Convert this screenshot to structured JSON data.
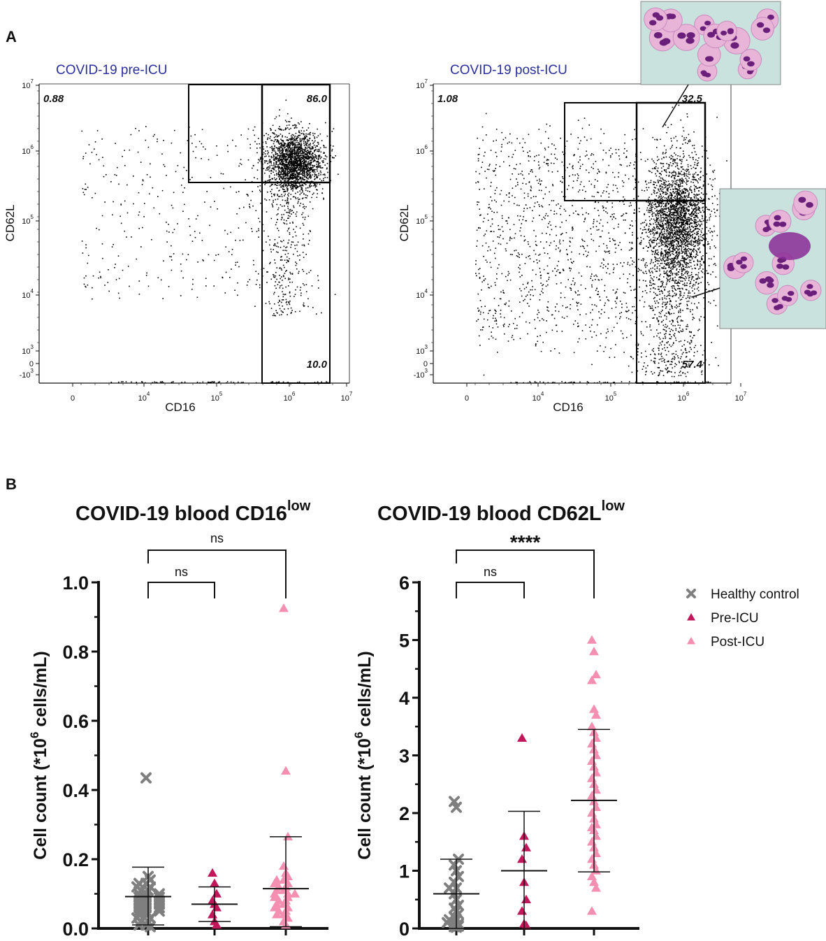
{
  "colors": {
    "healthy": "#7f7f7f",
    "pre_icu": "#c2185b",
    "post_icu": "#f48fb1",
    "title_blue": "#2b2f9c",
    "cell_bg": "#c9e2dd",
    "cell_pink": "#e8b4d8",
    "nucleus": "#6a1f7a"
  },
  "panel_a": {
    "letter": "A",
    "xlabel": "CD16",
    "ylabel": "CD62L",
    "x_ticks": [
      "0",
      "10",
      "10",
      "10",
      "10"
    ],
    "x_tick_exps": [
      "",
      "4",
      "5",
      "6",
      "7"
    ],
    "y_ticks": [
      "10",
      "10",
      "10",
      "10",
      "10",
      "0",
      "-10"
    ],
    "y_tick_exps": [
      "7",
      "6",
      "5",
      "4",
      "3",
      "",
      "3"
    ],
    "plots": [
      {
        "title": "COVID-19 pre-ICU",
        "gate_top_left": "0.88",
        "gate_top_right": "86.0",
        "gate_bottom_right": "10.0"
      },
      {
        "title": "COVID-19 post-ICU",
        "gate_top_left": "1.08",
        "gate_top_right": "32.5",
        "gate_bottom_right": "57.4"
      }
    ],
    "micrograph_icons": [
      "neutrophil-micrograph-icon",
      "hypersegmented-neutrophil-micrograph-icon"
    ]
  },
  "panel_b": {
    "letter": "B",
    "ylabel_prefix": "Cell count (*10",
    "ylabel_exp": "6",
    "ylabel_suffix": " cells/mL)",
    "legend": [
      {
        "label": "Healthy control",
        "marker": "x"
      },
      {
        "label": "Pre-ICU",
        "marker": "triangle"
      },
      {
        "label": "Post-ICU",
        "marker": "triangle"
      }
    ]
  },
  "chart_data": [
    {
      "type": "scatter",
      "title": "COVID-19 blood CD16",
      "title_sup": "low",
      "ylabel": "Cell count (*10^6 cells/mL)",
      "ylim": [
        0,
        1.0
      ],
      "y_ticks": [
        "0.0",
        "0.2",
        "0.4",
        "0.6",
        "0.8",
        "1.0"
      ],
      "categories": [
        "Healthy control",
        "Pre-ICU",
        "Post-ICU"
      ],
      "series": [
        {
          "name": "Healthy control",
          "mean": 0.092,
          "sd_low": 0.01,
          "sd_high": 0.177,
          "values": [
            0.435,
            0.15,
            0.14,
            0.13,
            0.13,
            0.12,
            0.12,
            0.11,
            0.11,
            0.1,
            0.1,
            0.1,
            0.09,
            0.09,
            0.09,
            0.08,
            0.08,
            0.08,
            0.07,
            0.07,
            0.07,
            0.06,
            0.06,
            0.06,
            0.05,
            0.05,
            0.05,
            0.04,
            0.04,
            0.03,
            0.03,
            0.02,
            0.02,
            0.01,
            0.01,
            0.005
          ]
        },
        {
          "name": "Pre-ICU",
          "mean": 0.07,
          "sd_low": 0.02,
          "sd_high": 0.12,
          "values": [
            0.16,
            0.13,
            0.1,
            0.08,
            0.07,
            0.06,
            0.04,
            0.02,
            0.01
          ]
        },
        {
          "name": "Post-ICU",
          "mean": 0.115,
          "sd_low": 0.005,
          "sd_high": 0.265,
          "values": [
            0.925,
            0.455,
            0.265,
            0.18,
            0.16,
            0.15,
            0.14,
            0.14,
            0.13,
            0.13,
            0.12,
            0.12,
            0.11,
            0.11,
            0.1,
            0.1,
            0.1,
            0.09,
            0.09,
            0.08,
            0.08,
            0.07,
            0.07,
            0.06,
            0.06,
            0.05,
            0.05,
            0.04,
            0.04,
            0.03,
            0.02,
            0.01
          ]
        }
      ],
      "comparisons": [
        {
          "from": "Healthy control",
          "to": "Pre-ICU",
          "label": "ns"
        },
        {
          "from": "Healthy control",
          "to": "Post-ICU",
          "label": "ns"
        }
      ]
    },
    {
      "type": "scatter",
      "title": "COVID-19 blood CD62L",
      "title_sup": "low",
      "ylabel": "Cell count (*10^6 cells/mL)",
      "ylim": [
        0,
        6
      ],
      "y_ticks": [
        "0",
        "1",
        "2",
        "3",
        "4",
        "5",
        "6"
      ],
      "categories": [
        "Healthy control",
        "Pre-ICU",
        "Post-ICU"
      ],
      "series": [
        {
          "name": "Healthy control",
          "mean": 0.6,
          "sd_low": 0.0,
          "sd_high": 1.2,
          "values": [
            2.2,
            2.1,
            1.2,
            1.1,
            1.0,
            0.9,
            0.8,
            0.7,
            0.7,
            0.6,
            0.5,
            0.4,
            0.35,
            0.3,
            0.25,
            0.2,
            0.15,
            0.15,
            0.1,
            0.1,
            0.08,
            0.06,
            0.05,
            0.04,
            0.03,
            0.02
          ]
        },
        {
          "name": "Pre-ICU",
          "mean": 1.0,
          "sd_low": 0.0,
          "sd_high": 2.03,
          "values": [
            3.3,
            1.6,
            1.4,
            1.2,
            0.8,
            0.5,
            0.3,
            0.08,
            0.05
          ]
        },
        {
          "name": "Post-ICU",
          "mean": 2.22,
          "sd_low": 0.98,
          "sd_high": 3.45,
          "values": [
            5.0,
            4.8,
            4.4,
            4.3,
            3.8,
            3.7,
            3.5,
            3.4,
            3.3,
            3.2,
            3.1,
            3.0,
            2.9,
            2.8,
            2.7,
            2.6,
            2.5,
            2.4,
            2.3,
            2.2,
            2.1,
            2.0,
            1.9,
            1.8,
            1.75,
            1.7,
            1.6,
            1.5,
            1.4,
            1.3,
            1.2,
            1.1,
            1.0,
            0.9,
            0.8,
            0.7,
            0.3
          ]
        }
      ],
      "comparisons": [
        {
          "from": "Healthy control",
          "to": "Pre-ICU",
          "label": "ns"
        },
        {
          "from": "Healthy control",
          "to": "Post-ICU",
          "label": "****"
        }
      ]
    }
  ]
}
